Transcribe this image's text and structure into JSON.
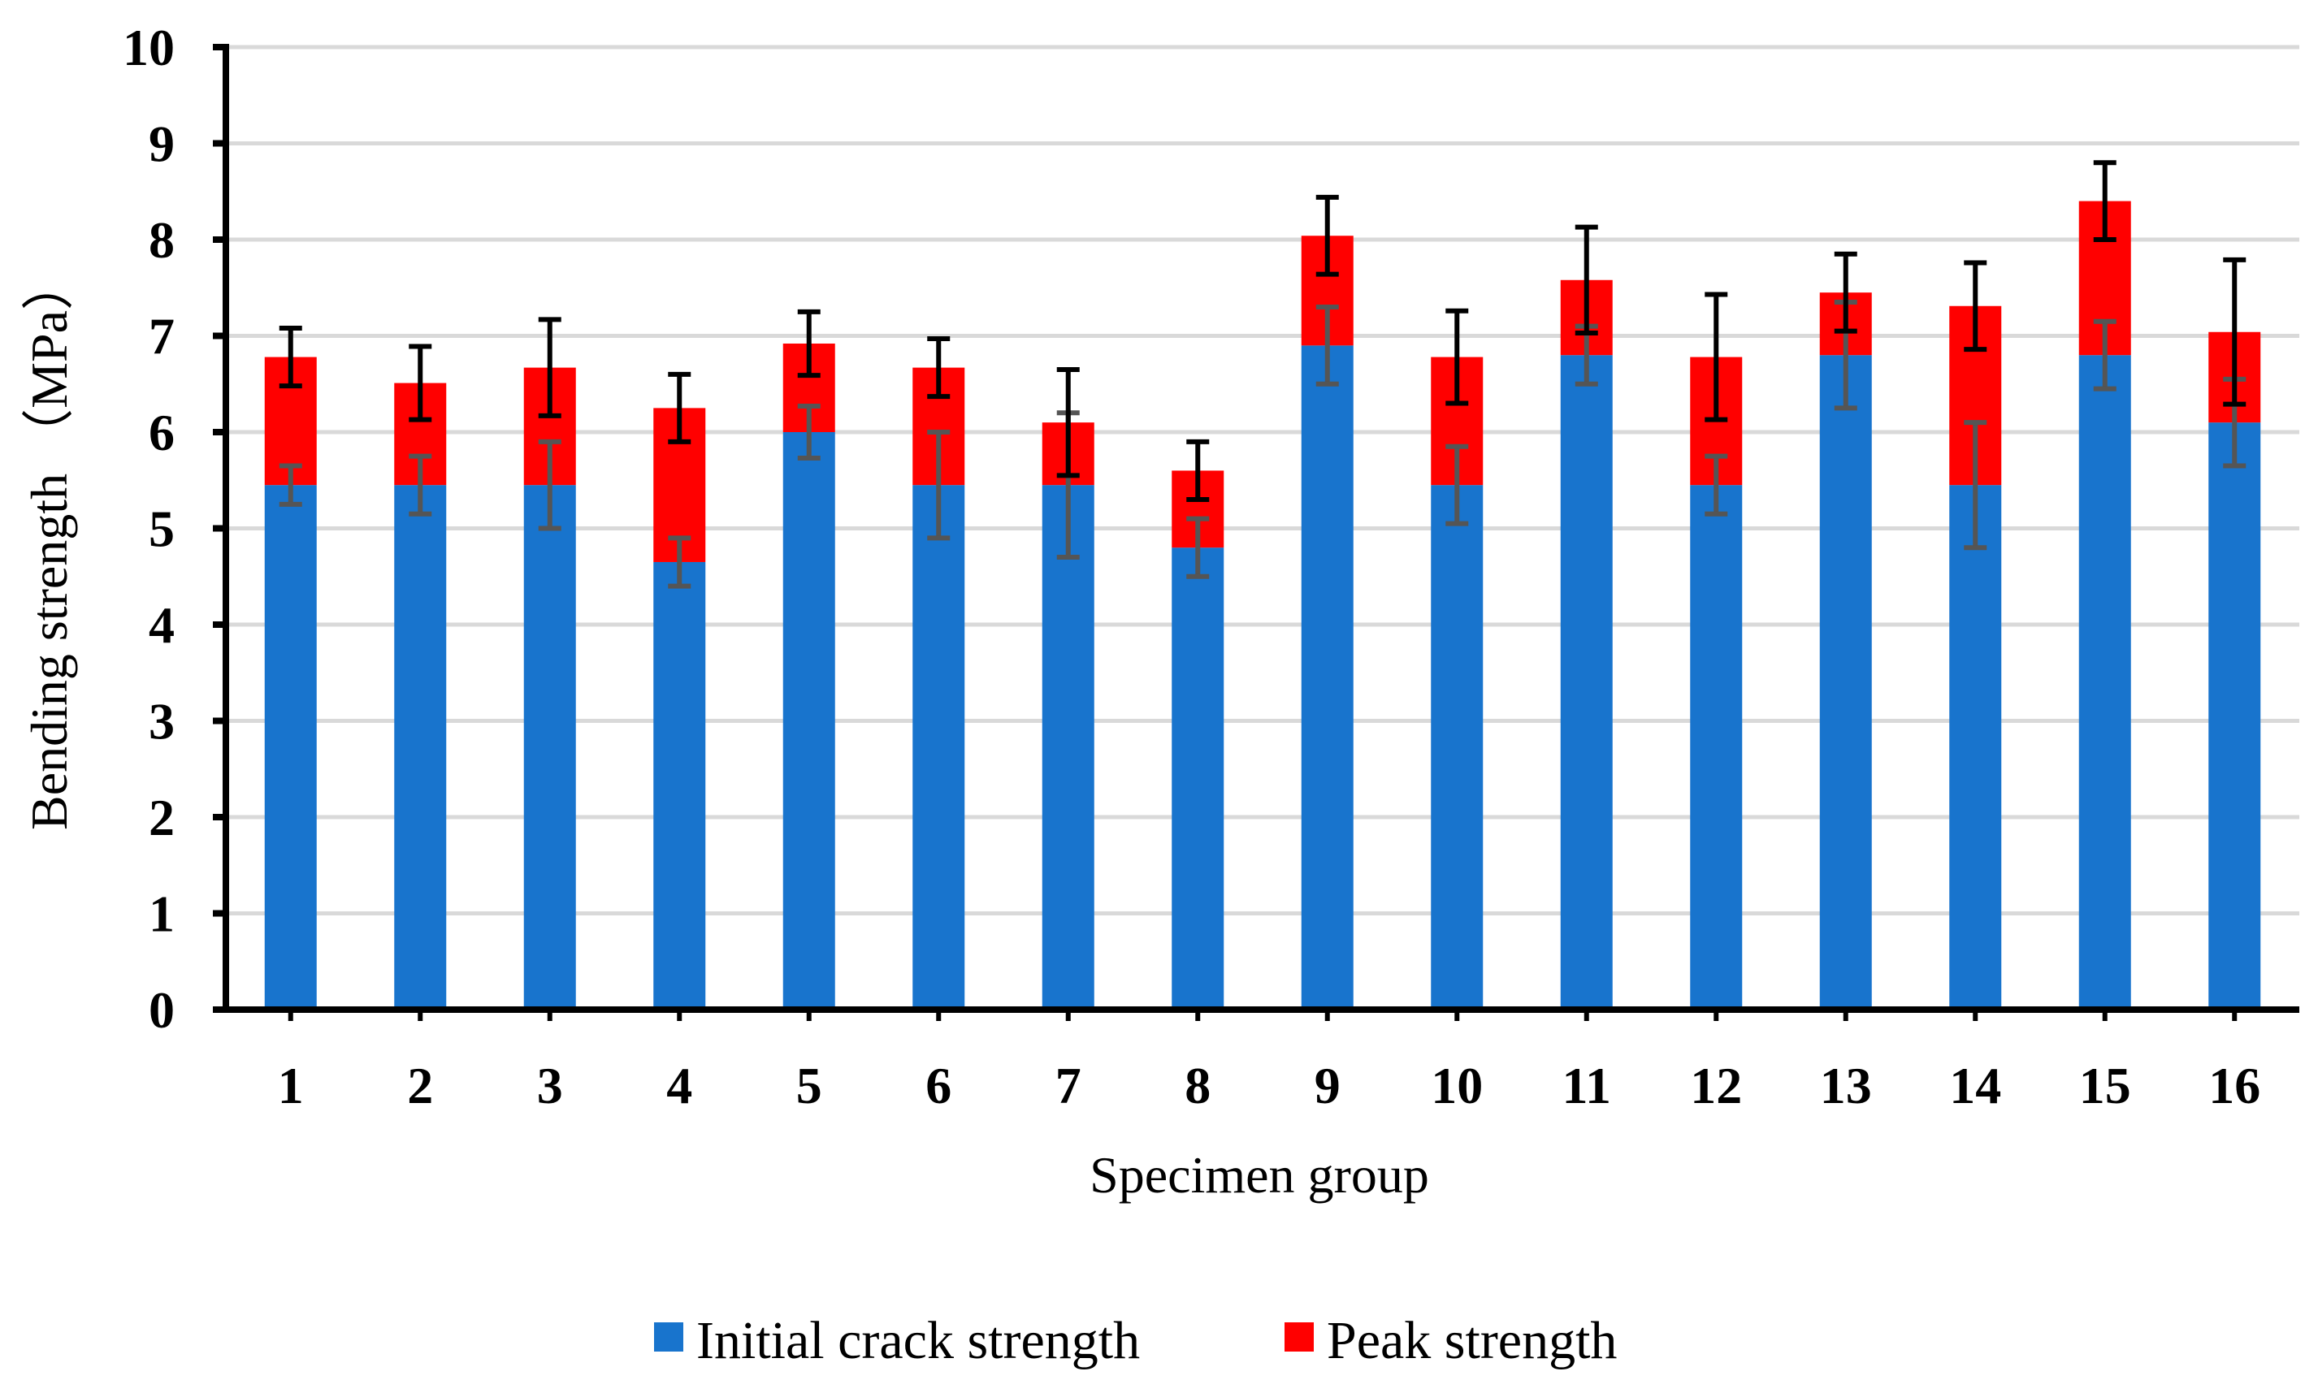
{
  "chart_data": {
    "type": "bar",
    "stacked": true,
    "title": "",
    "xlabel": "Specimen group",
    "ylabel": "Bending strength （MPa）",
    "ylim": [
      0,
      10
    ],
    "yticks": [
      0,
      1,
      2,
      3,
      4,
      5,
      6,
      7,
      8,
      9,
      10
    ],
    "grid": true,
    "legend_position": "bottom",
    "categories": [
      "1",
      "2",
      "3",
      "4",
      "5",
      "6",
      "7",
      "8",
      "9",
      "10",
      "11",
      "12",
      "13",
      "14",
      "15",
      "16"
    ],
    "series": [
      {
        "name": "Initial crack strength",
        "color": "#1874CD",
        "values": [
          5.45,
          5.45,
          5.45,
          4.65,
          6.0,
          5.45,
          5.45,
          4.8,
          6.9,
          5.45,
          6.8,
          5.45,
          6.8,
          5.45,
          6.8,
          6.1
        ],
        "errors": [
          0.2,
          0.3,
          0.45,
          0.25,
          0.27,
          0.55,
          0.75,
          0.3,
          0.4,
          0.4,
          0.3,
          0.3,
          0.55,
          0.65,
          0.35,
          0.45
        ],
        "error_color": "#555555"
      },
      {
        "name": "Peak strength",
        "color": "#FF0000",
        "values": [
          1.33,
          1.06,
          1.22,
          1.6,
          0.92,
          1.22,
          0.65,
          0.8,
          1.14,
          1.33,
          0.78,
          1.33,
          0.65,
          1.86,
          1.6,
          0.94
        ],
        "totals": [
          6.78,
          6.51,
          6.67,
          6.25,
          6.92,
          6.67,
          6.1,
          5.6,
          8.04,
          6.78,
          7.58,
          6.78,
          7.45,
          7.31,
          8.4,
          7.04
        ],
        "errors": [
          0.3,
          0.38,
          0.5,
          0.35,
          0.33,
          0.3,
          0.55,
          0.3,
          0.4,
          0.48,
          0.55,
          0.65,
          0.4,
          0.45,
          0.4,
          0.75
        ],
        "error_color": "#000000"
      }
    ]
  }
}
